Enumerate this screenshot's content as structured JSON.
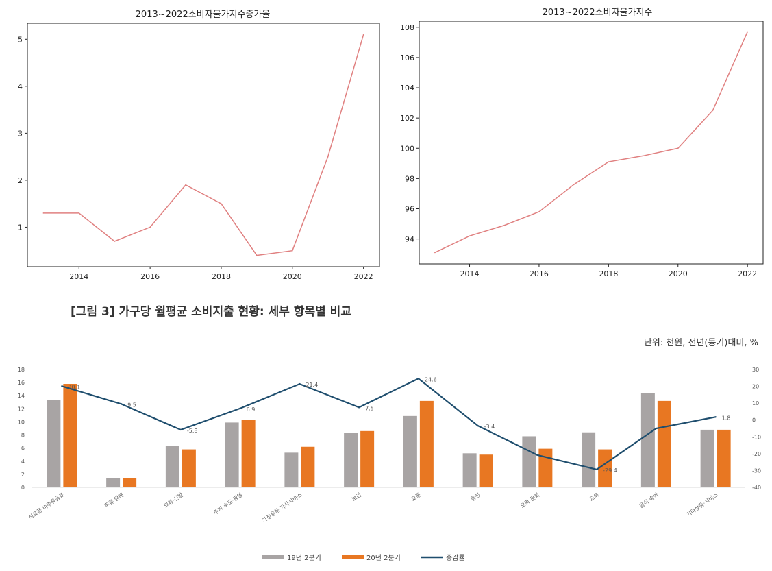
{
  "top_left": {
    "title": "2013~2022소비자물가지수증가율",
    "chart_data": {
      "type": "line",
      "title": "2013~2022소비자물가지수증가율",
      "xlabel": "",
      "ylabel": "",
      "x": [
        2013,
        2014,
        2015,
        2016,
        2017,
        2018,
        2019,
        2020,
        2021,
        2022
      ],
      "series": [
        {
          "values": [
            1.3,
            1.3,
            0.7,
            1.0,
            1.9,
            1.5,
            0.4,
            0.5,
            2.5,
            5.1
          ],
          "color": "#e08080"
        }
      ],
      "xticks": [
        2014,
        2016,
        2018,
        2020,
        2022
      ],
      "yticks": [
        1,
        2,
        3,
        4,
        5
      ],
      "xlim": [
        2012.55,
        2022.45
      ],
      "ylim": [
        0.16,
        5.34
      ],
      "grid": false
    }
  },
  "top_right": {
    "title": "2013~2022소비자물가지수",
    "chart_data": {
      "type": "line",
      "title": "2013~2022소비자물가지수",
      "xlabel": "",
      "ylabel": "",
      "x": [
        2013,
        2014,
        2015,
        2016,
        2017,
        2018,
        2019,
        2020,
        2021,
        2022
      ],
      "series": [
        {
          "values": [
            93.1,
            94.2,
            94.9,
            95.8,
            97.6,
            99.1,
            99.5,
            100.0,
            102.5,
            107.7
          ],
          "color": "#e08080"
        }
      ],
      "xticks": [
        2014,
        2016,
        2018,
        2020,
        2022
      ],
      "yticks": [
        94,
        96,
        98,
        100,
        102,
        104,
        106,
        108
      ],
      "xlim": [
        2012.55,
        2022.45
      ],
      "ylim": [
        92.35,
        108.4
      ],
      "grid": false
    }
  },
  "figure3": {
    "caption": "[그림 3] 가구당 월평균 소비지출 현황: 세부 항목별 비교",
    "unit": "단위: 천원, 전년(동기)대비, %",
    "chart_data": {
      "type": "bar",
      "title": "",
      "categories": [
        "식료품·비주류음료",
        "주류·담배",
        "의류·신발",
        "주거·수도·광열",
        "가정용품·가사서비스",
        "보건",
        "교통",
        "통신",
        "오락·문화",
        "교육",
        "음식·숙박",
        "기타상품·서비스"
      ],
      "series": [
        {
          "name": "19년 2분기",
          "type": "bar",
          "axis": "left",
          "color": "#a8a4a4",
          "values": [
            13.3,
            1.4,
            6.3,
            9.9,
            5.3,
            8.3,
            10.9,
            5.2,
            7.8,
            8.4,
            14.4,
            8.8
          ]
        },
        {
          "name": "20년 2분기",
          "type": "bar",
          "axis": "left",
          "color": "#e87722",
          "values": [
            15.8,
            1.4,
            5.8,
            10.3,
            6.2,
            8.6,
            13.2,
            5.0,
            5.9,
            5.8,
            13.2,
            8.8
          ]
        },
        {
          "name": "증감률",
          "type": "line",
          "axis": "right",
          "color": "#1f4e6e",
          "values": [
            20.1,
            9.5,
            -5.8,
            6.9,
            21.4,
            7.5,
            24.6,
            -3.4,
            -20.8,
            -29.4,
            -5.0,
            1.8
          ],
          "labels": [
            "20.1",
            "9.5",
            "-5.8",
            "6.9",
            "21.4",
            "7.5",
            "24.6",
            "-3.4",
            "",
            "-29.4",
            "",
            "1.8"
          ]
        }
      ],
      "ylim_left": [
        0,
        18
      ],
      "yticks_left": [
        0,
        2,
        4,
        6,
        8,
        10,
        12,
        14,
        16,
        18
      ],
      "ylim_right": [
        -40,
        30
      ],
      "yticks_right": [
        30,
        20,
        10,
        0,
        -10,
        -20,
        -30,
        -40
      ],
      "legend": "bottom-center",
      "grid": false
    }
  }
}
